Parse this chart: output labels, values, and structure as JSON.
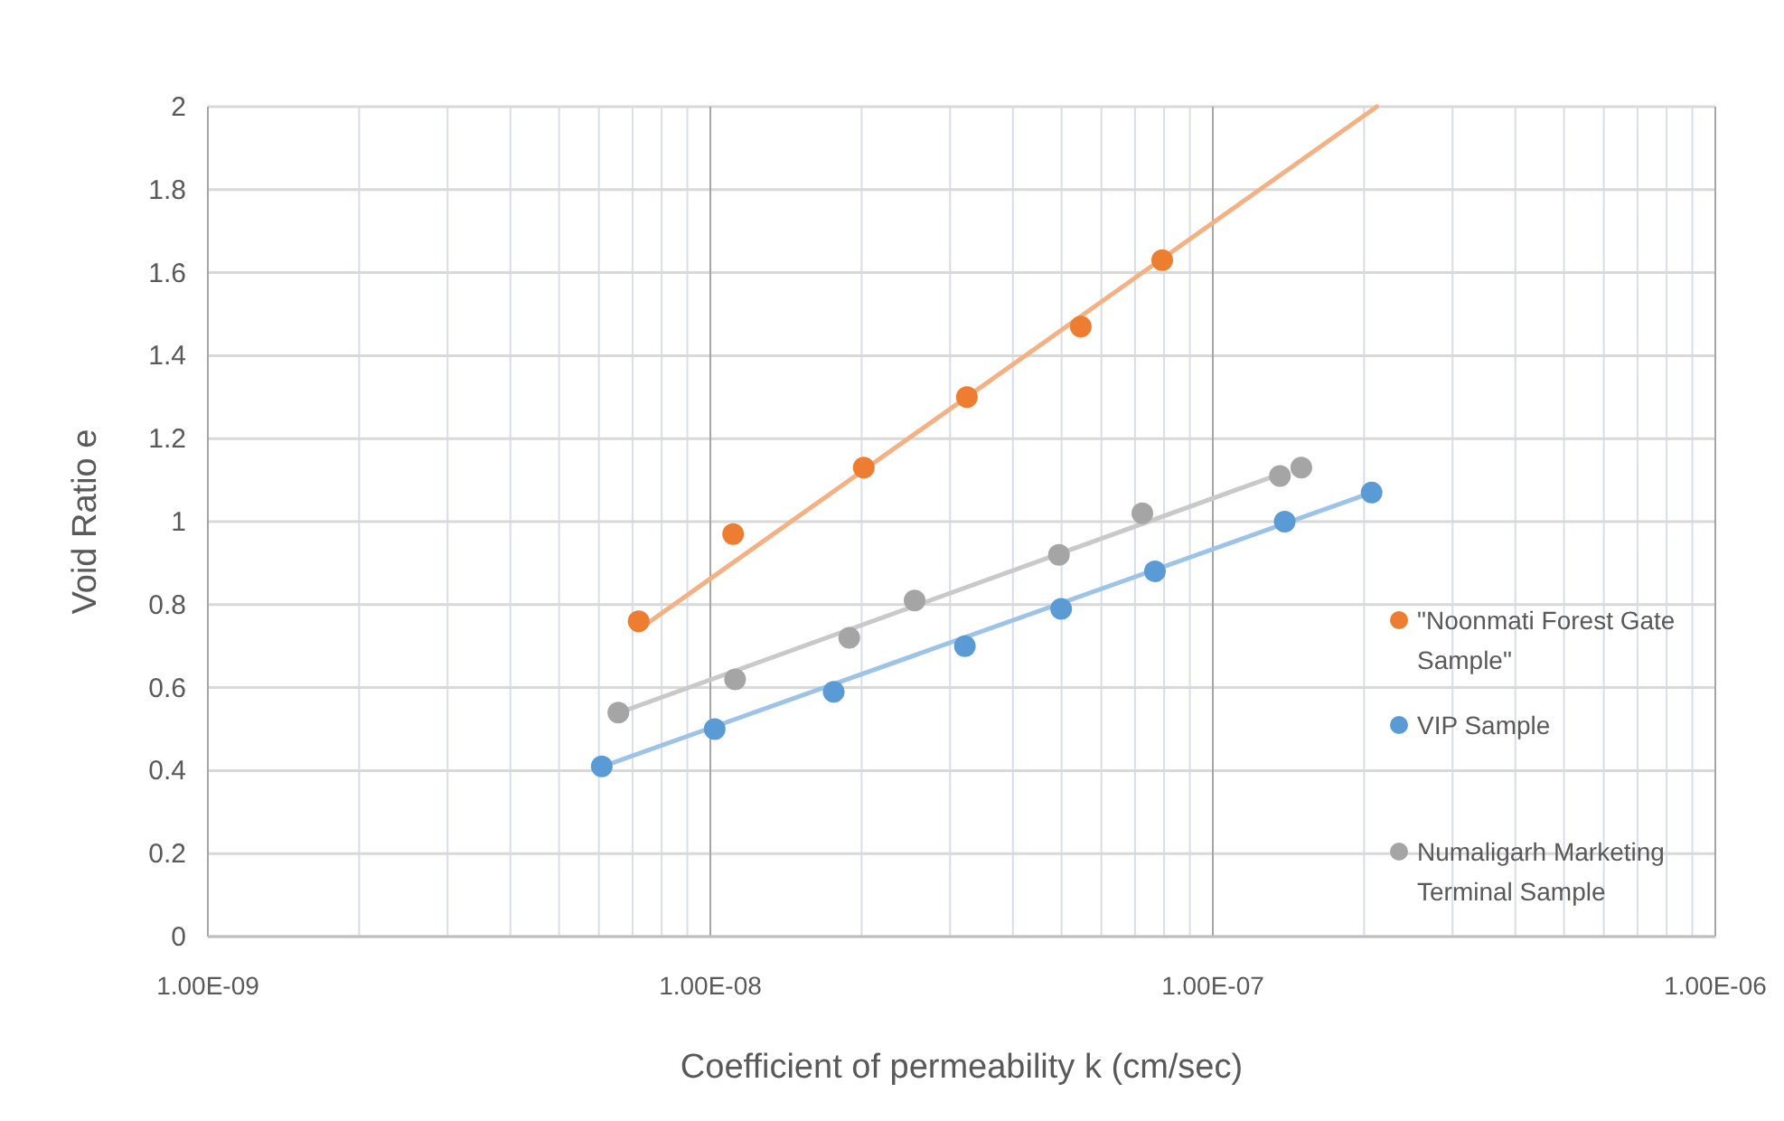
{
  "chart_data": {
    "type": "scatter",
    "xlabel": "Coefficient of permeability k (cm/sec)",
    "ylabel": "Void Ratio e",
    "log": "x",
    "grid": true,
    "legend": "right",
    "marker": "circle",
    "xlim": [
      1e-09,
      1e-06
    ],
    "xticks": [
      {
        "value": 1e-09,
        "label": "1.00E-09"
      },
      {
        "value": 1e-08,
        "label": "1.00E-08"
      },
      {
        "value": 1e-07,
        "label": "1.00E-07"
      },
      {
        "value": 1e-06,
        "label": "1.00E-06"
      }
    ],
    "ylim": [
      0,
      2
    ],
    "yticks": [
      0,
      0.2,
      0.4,
      0.6,
      0.8,
      1,
      1.2,
      1.4,
      1.6,
      1.8,
      2
    ],
    "series": [
      {
        "type": "line",
        "color": "#f4b183",
        "line_style": "solid",
        "marker": "none",
        "x": [
          7.2e-09,
          2.12e-07
        ],
        "values": [
          0.74,
          2.0
        ]
      },
      {
        "type": "line",
        "color": "#9dc3e6",
        "line_style": "solid",
        "marker": "none",
        "x": [
          6.1e-09,
          2.07e-07
        ],
        "values": [
          0.41,
          1.07
        ]
      },
      {
        "type": "line",
        "color": "#c9c9c9",
        "line_style": "solid",
        "marker": "none",
        "x": [
          6.6e-09,
          1.4e-07
        ],
        "values": [
          0.54,
          1.12
        ]
      },
      {
        "name": "\"Noonmati Forest Gate Sample\"",
        "color": "#ed7d31",
        "x": [
          7.2e-09,
          1.11e-08,
          2.02e-08,
          3.24e-08,
          5.46e-08,
          7.93e-08
        ],
        "values": [
          0.76,
          0.97,
          1.13,
          1.3,
          1.47,
          1.63
        ]
      },
      {
        "name": "VIP Sample",
        "color": "#5b9bd5",
        "x": [
          6.08e-09,
          1.02e-08,
          1.76e-08,
          3.21e-08,
          4.99e-08,
          7.67e-08,
          1.39e-07,
          2.07e-07
        ],
        "values": [
          0.41,
          0.5,
          0.59,
          0.7,
          0.79,
          0.88,
          1.0,
          1.07
        ]
      },
      {
        "name": "Numaligarh Marketing Terminal Sample",
        "color": "#a5a5a5",
        "x": [
          6.56e-09,
          1.12e-08,
          1.89e-08,
          2.55e-08,
          4.94e-08,
          7.24e-08,
          1.36e-07,
          1.5e-07
        ],
        "values": [
          0.54,
          0.62,
          0.72,
          0.81,
          0.92,
          1.02,
          1.11,
          1.13
        ]
      }
    ]
  }
}
